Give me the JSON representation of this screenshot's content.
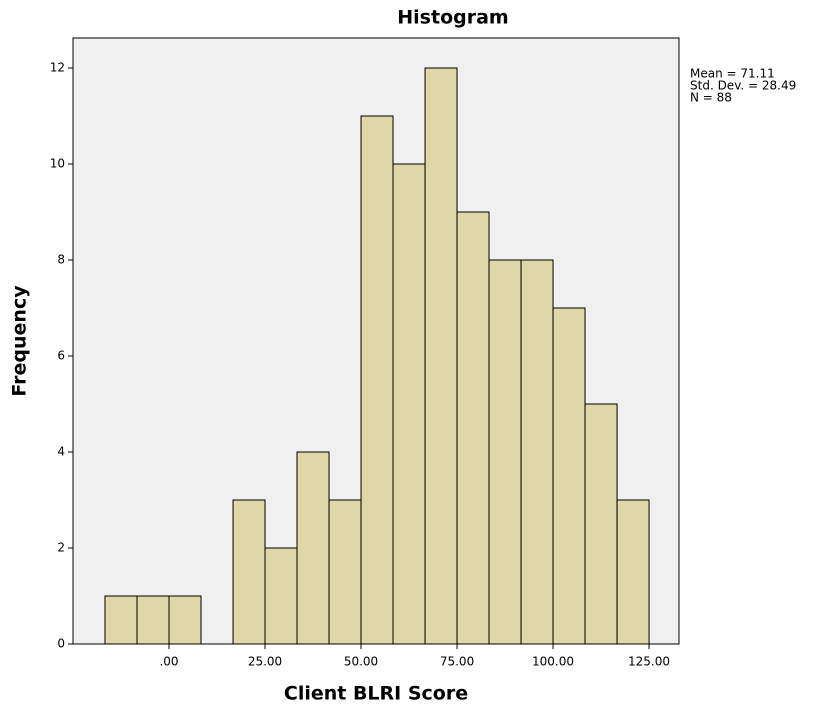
{
  "chart_data": {
    "type": "histogram",
    "title": "Histogram",
    "x_label": "Client BLRI Score",
    "y_label": "Frequency",
    "bins": [
      -16.67,
      -8.33,
      0,
      8.33,
      16.67,
      25,
      33.33,
      41.67,
      50,
      58.33,
      66.67,
      75,
      83.33,
      91.67,
      100,
      108.33,
      116.67,
      125
    ],
    "values": [
      1,
      1,
      1,
      0,
      3,
      2,
      4,
      3,
      11,
      10,
      12,
      9,
      8,
      8,
      7,
      5,
      3
    ],
    "color": "#ded7a8",
    "xlim": [
      -25,
      132.8
    ],
    "ylim": [
      0,
      12.625
    ],
    "xticks": [
      {
        "value": 0,
        "label": ".00"
      },
      {
        "value": 25,
        "label": "25.00"
      },
      {
        "value": 50,
        "label": "50.00"
      },
      {
        "value": 75,
        "label": "75.00"
      },
      {
        "value": 100,
        "label": "100.00"
      },
      {
        "value": 125,
        "label": "125.00"
      }
    ],
    "yticks": [
      0,
      2,
      4,
      6,
      8,
      10,
      12
    ],
    "annotations": [
      "Mean = 71.11",
      "Std. Dev. = 28.49",
      "N = 88"
    ]
  }
}
